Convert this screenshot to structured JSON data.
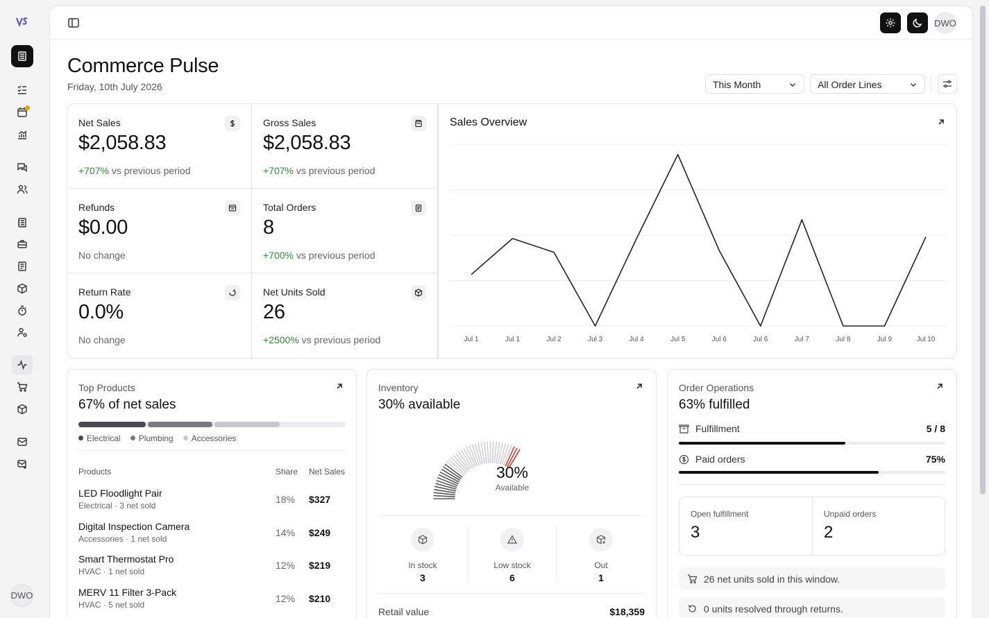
{
  "user": {
    "initials": "DWO"
  },
  "page": {
    "title": "Commerce Pulse",
    "date": "Friday, 10th July 2026"
  },
  "filters": {
    "period": "This Month",
    "lines": "All Order Lines"
  },
  "stats": [
    {
      "label": "Net Sales",
      "value": "$2,058.83",
      "change": "+707%",
      "change_suffix": " vs previous period",
      "icon": "dollar-icon"
    },
    {
      "label": "Gross Sales",
      "value": "$2,058.83",
      "change": "+707%",
      "change_suffix": " vs previous period",
      "icon": "bag-icon"
    },
    {
      "label": "Refunds",
      "value": "$0.00",
      "change": "",
      "change_suffix": "No change",
      "icon": "receipt-icon"
    },
    {
      "label": "Total Orders",
      "value": "8",
      "change": "+700%",
      "change_suffix": " vs previous period",
      "icon": "document-icon"
    },
    {
      "label": "Return Rate",
      "value": "0.0%",
      "change": "",
      "change_suffix": "No change",
      "icon": "refresh-icon"
    },
    {
      "label": "Net Units Sold",
      "value": "26",
      "change": "+2500%",
      "change_suffix": " vs previous period",
      "icon": "box-icon"
    }
  ],
  "chart_data": {
    "type": "line",
    "title": "Sales Overview",
    "categories": [
      "Jul 1",
      "Jul 1",
      "Jul 2",
      "Jul 3",
      "Jul 4",
      "Jul 5",
      "Jul 6",
      "Jul 6",
      "Jul 7",
      "Jul 8",
      "Jul 9",
      "Jul 10"
    ],
    "values": [
      0.3,
      0.51,
      0.43,
      0.0,
      0.51,
      1.0,
      0.44,
      0.0,
      0.62,
      0.0,
      0.0,
      0.52
    ],
    "ylim": [
      0,
      1.06
    ],
    "grid": true,
    "legend": "none",
    "color": "#222222"
  },
  "top_products": {
    "kicker": "Top Products",
    "headline": "67% of net sales",
    "segments": [
      {
        "name": "Electrical",
        "share": 0.26,
        "color": "#4a4a4e"
      },
      {
        "name": "Plumbing",
        "share": 0.25,
        "color": "#7a7a7e"
      },
      {
        "name": "Accessories",
        "share": 0.25,
        "color": "#c8c8cc"
      }
    ],
    "columns": {
      "product": "Products",
      "share": "Share",
      "sales": "Net Sales"
    },
    "rows": [
      {
        "name": "LED Floodlight Pair",
        "sub": "Electrical · 3 net sold",
        "share": "18%",
        "sales": "$327"
      },
      {
        "name": "Digital Inspection Camera",
        "sub": "Accessories · 1 net sold",
        "share": "14%",
        "sales": "$249"
      },
      {
        "name": "Smart Thermostat Pro",
        "sub": "HVAC · 1 net sold",
        "share": "12%",
        "sales": "$219"
      },
      {
        "name": "MERV 11 Filter 3-Pack",
        "sub": "HVAC · 5 net sold",
        "share": "12%",
        "sales": "$210"
      }
    ]
  },
  "inventory": {
    "kicker": "Inventory",
    "headline": "30% available",
    "gauge_value": 0.3,
    "gauge_pct": "30%",
    "gauge_label": "Available",
    "accent": "#d23b2c",
    "stock": [
      {
        "label": "In stock",
        "value": "3",
        "icon": "box-icon"
      },
      {
        "label": "Low stock",
        "value": "6",
        "icon": "warning-icon"
      },
      {
        "label": "Out",
        "value": "1",
        "icon": "box-x-icon"
      }
    ],
    "retail_label": "Retail value",
    "retail_value": "$18,359"
  },
  "operations": {
    "kicker": "Order Operations",
    "headline": "63% fulfilled",
    "fulfillment": {
      "label": "Fulfillment",
      "value": "5 / 8",
      "progress": 0.625
    },
    "paid": {
      "label": "Paid orders",
      "value": "75%",
      "progress": 0.75
    },
    "open_label": "Open fulfillment",
    "open_value": "3",
    "unpaid_label": "Unpaid orders",
    "unpaid_value": "2",
    "note1": "26 net units sold in this window.",
    "note2": "0 units resolved through returns."
  }
}
